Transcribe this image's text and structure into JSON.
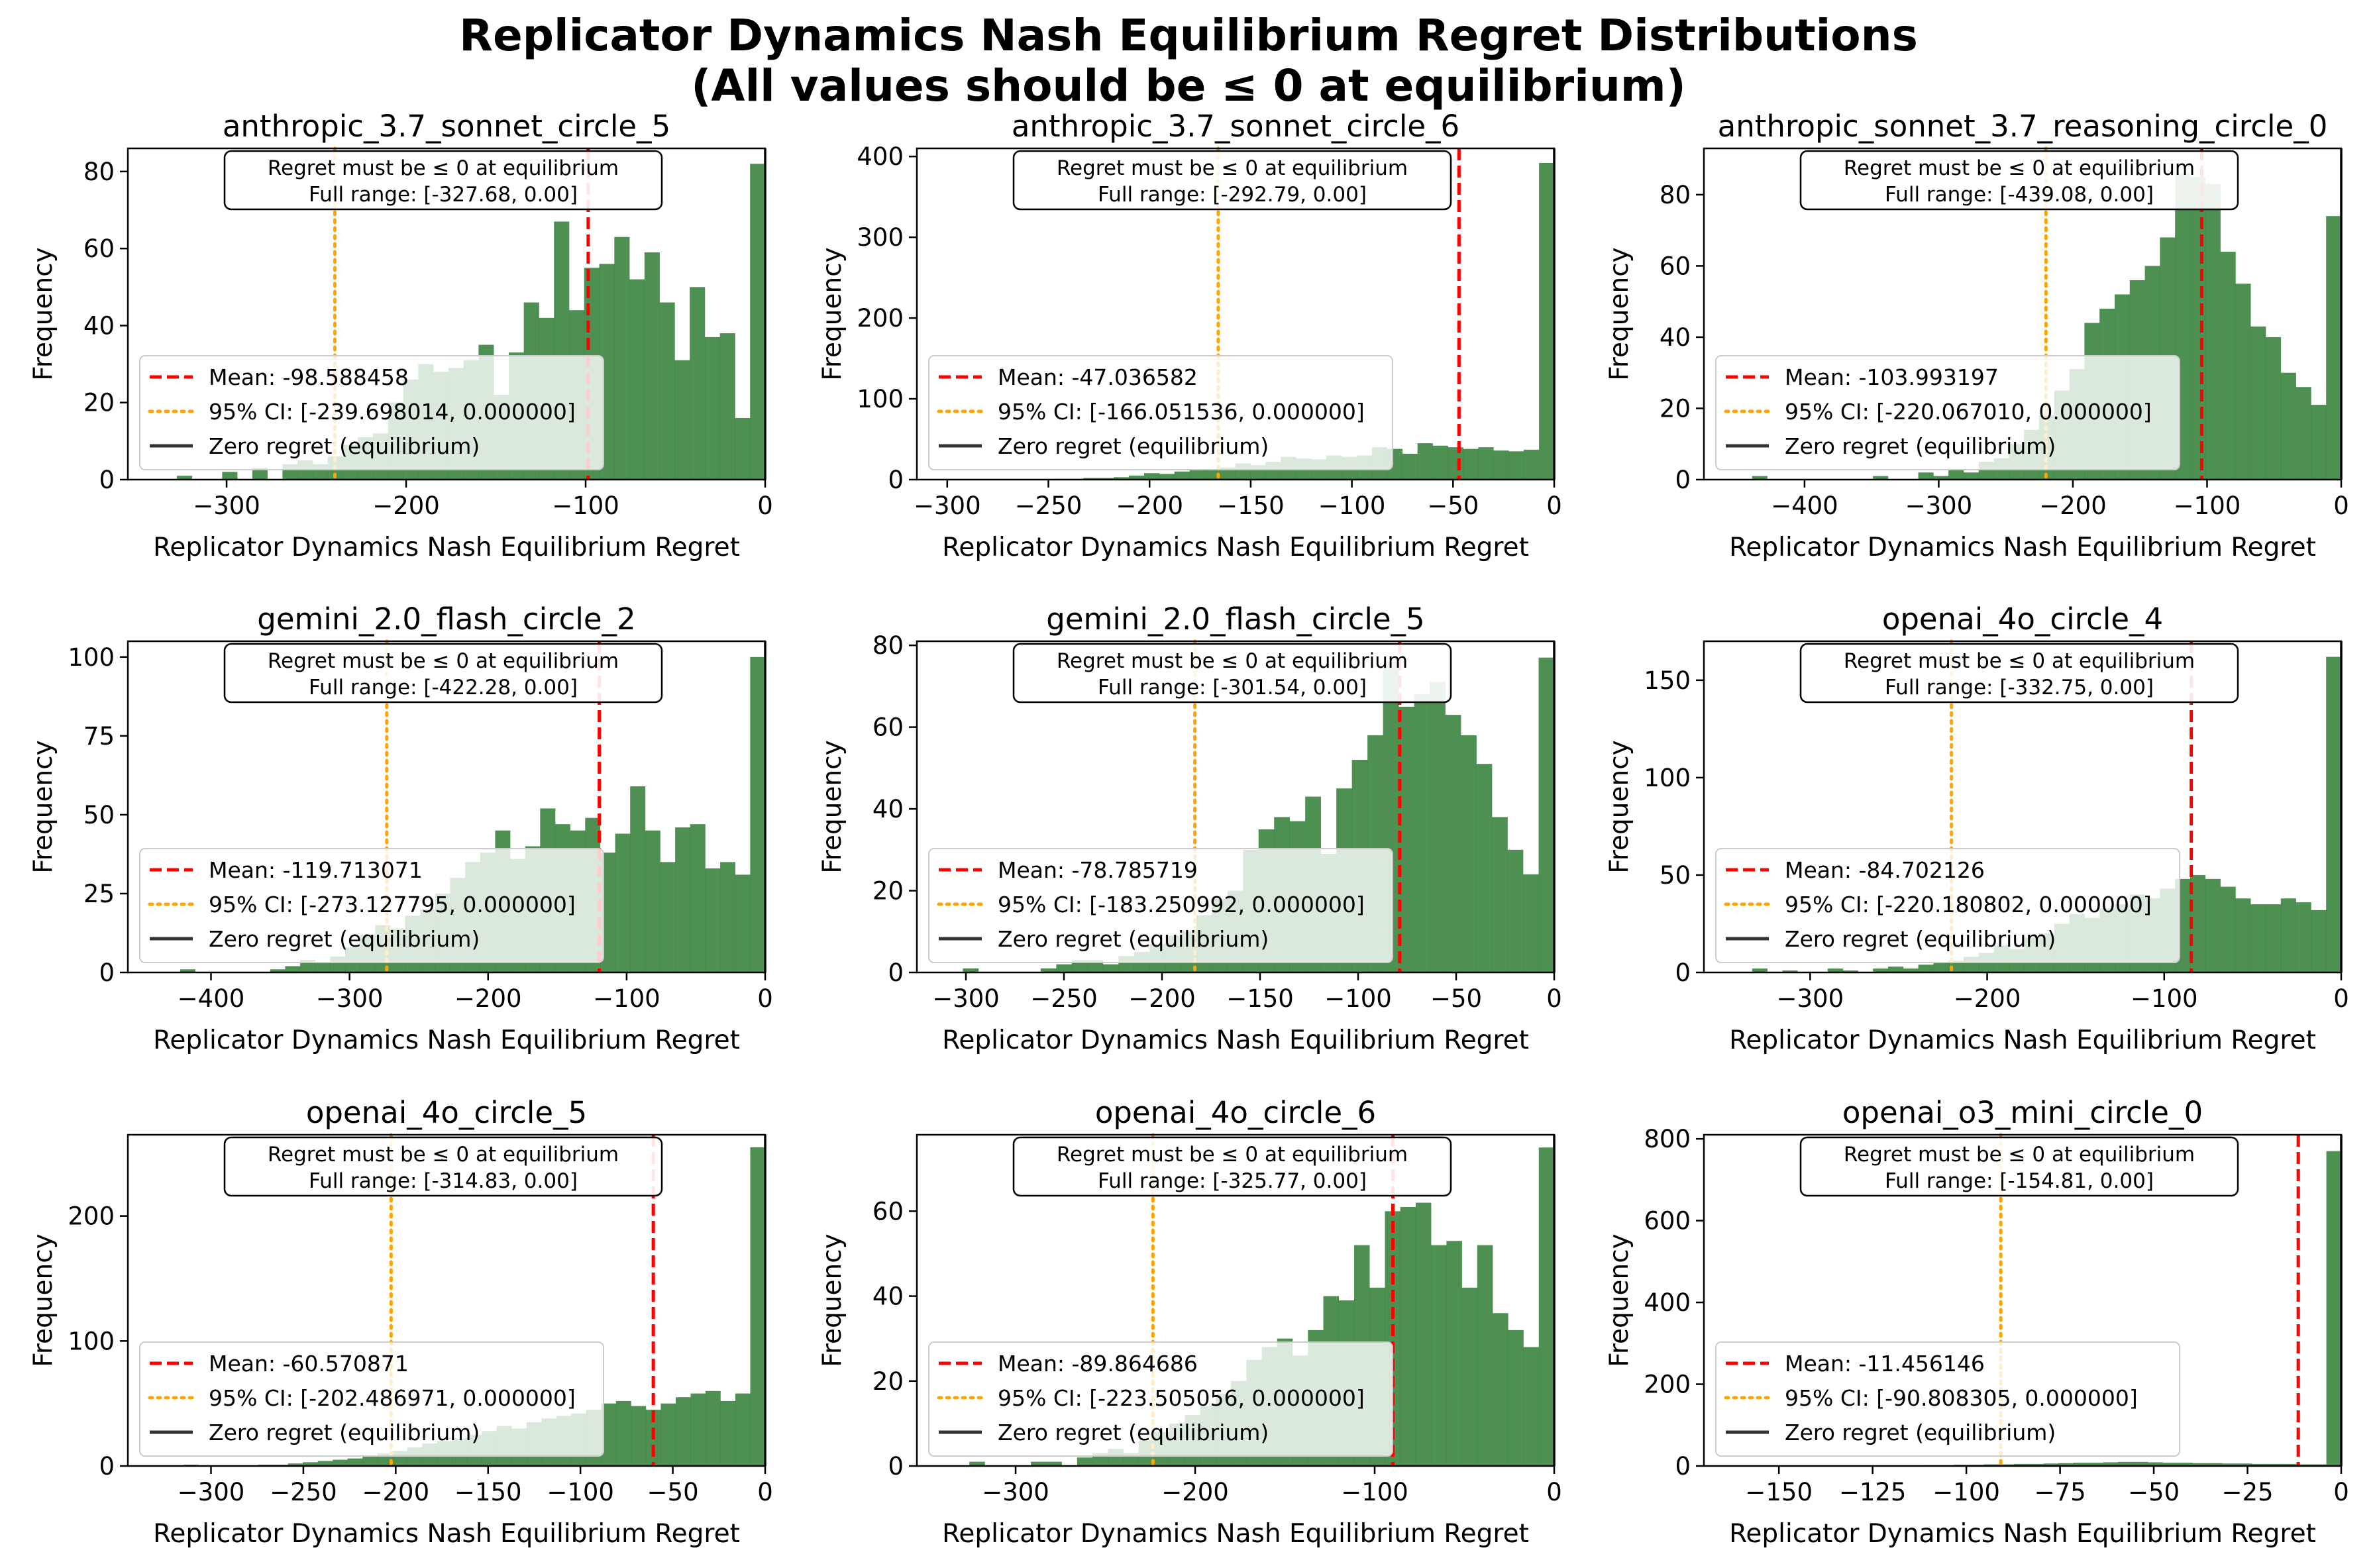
{
  "figure": {
    "title_line1": "Replicator Dynamics Nash Equilibrium Regret Distributions",
    "title_line2": "(All values should be ≤ 0 at equilibrium)"
  },
  "colors": {
    "bars": "#2e7d32",
    "mean_line": "#ff0000",
    "ci_line": "#ffa500",
    "zero_line": "#333333"
  },
  "chart_data": [
    {
      "type": "bar",
      "title": "anthropic_3.7_sonnet_circle_5",
      "xlabel": "Replicator Dynamics Nash Equilibrium Regret",
      "ylabel": "Frequency",
      "xlim": [
        -355,
        0
      ],
      "ylim": [
        0,
        86
      ],
      "xticks": [
        -300,
        -200,
        -100,
        0
      ],
      "yticks": [
        0,
        20,
        40,
        60,
        80
      ],
      "bin_range": [
        -327.68,
        0
      ],
      "values": [
        1,
        0,
        0,
        2,
        0,
        3,
        0,
        4,
        5,
        4,
        6,
        9,
        11,
        12,
        20,
        26,
        30,
        28,
        29,
        31,
        35,
        22,
        33,
        46,
        42,
        67,
        44,
        55,
        56,
        63,
        52,
        59,
        46,
        31,
        50,
        37,
        38,
        16,
        82
      ],
      "mean": -98.588458,
      "ci": [
        -239.698014,
        0.0
      ],
      "annotation_line1": "Regret must be ≤ 0 at equilibrium",
      "annotation_line2": "Full range: [-327.68, 0.00]",
      "legend": [
        "Mean: -98.588458",
        "95% CI: [-239.698014, 0.000000]",
        "Zero regret (equilibrium)"
      ]
    },
    {
      "type": "bar",
      "title": "anthropic_3.7_sonnet_circle_6",
      "xlabel": "Replicator Dynamics Nash Equilibrium Regret",
      "ylabel": "Frequency",
      "xlim": [
        -315,
        0
      ],
      "ylim": [
        0,
        410
      ],
      "xticks": [
        -300,
        -250,
        -200,
        -150,
        -100,
        -50,
        0
      ],
      "yticks": [
        0,
        100,
        200,
        300,
        400
      ],
      "bin_range": [
        -292.79,
        0
      ],
      "values": [
        0,
        0,
        0,
        0,
        0,
        0,
        1,
        1,
        2,
        2,
        3,
        5,
        8,
        7,
        10,
        12,
        13,
        15,
        20,
        18,
        22,
        28,
        26,
        25,
        30,
        28,
        30,
        40,
        38,
        32,
        45,
        42,
        40,
        38,
        40,
        36,
        35,
        37,
        392
      ],
      "mean": -47.036582,
      "ci": [
        -166.051536,
        0.0
      ],
      "annotation_line1": "Regret must be ≤ 0 at equilibrium",
      "annotation_line2": "Full range: [-292.79, 0.00]",
      "legend": [
        "Mean: -47.036582",
        "95% CI: [-166.051536, 0.000000]",
        "Zero regret (equilibrium)"
      ]
    },
    {
      "type": "bar",
      "title": "anthropic_sonnet_3.7_reasoning_circle_0",
      "xlabel": "Replicator Dynamics Nash Equilibrium Regret",
      "ylabel": "Frequency",
      "xlim": [
        -475,
        0
      ],
      "ylim": [
        0,
        93
      ],
      "xticks": [
        -400,
        -300,
        -200,
        -100,
        0
      ],
      "yticks": [
        0,
        20,
        40,
        60,
        80
      ],
      "bin_range": [
        -439.08,
        0
      ],
      "values": [
        1,
        0,
        0,
        0,
        0,
        0,
        0,
        0,
        1,
        0,
        0,
        2,
        1,
        3,
        2,
        5,
        6,
        10,
        14,
        18,
        25,
        31,
        44,
        48,
        52,
        56,
        60,
        68,
        86,
        85,
        83,
        64,
        55,
        43,
        40,
        30,
        26,
        21,
        74
      ],
      "mean": -103.993197,
      "ci": [
        -220.06701,
        0.0
      ],
      "annotation_line1": "Regret must be ≤ 0 at equilibrium",
      "annotation_line2": "Full range: [-439.08, 0.00]",
      "legend": [
        "Mean: -103.993197",
        "95% CI: [-220.067010, 0.000000]",
        "Zero regret (equilibrium)"
      ]
    },
    {
      "type": "bar",
      "title": "gemini_2.0_flash_circle_2",
      "xlabel": "Replicator Dynamics Nash Equilibrium Regret",
      "ylabel": "Frequency",
      "xlim": [
        -460,
        0
      ],
      "ylim": [
        0,
        105
      ],
      "xticks": [
        -400,
        -300,
        -200,
        -100,
        0
      ],
      "yticks": [
        0,
        25,
        50,
        75,
        100
      ],
      "bin_range": [
        -422.28,
        0
      ],
      "values": [
        1,
        0,
        0,
        0,
        0,
        0,
        1,
        2,
        4,
        3,
        5,
        8,
        12,
        15,
        14,
        18,
        20,
        25,
        30,
        35,
        38,
        45,
        36,
        40,
        52,
        47,
        45,
        49,
        38,
        44,
        59,
        45,
        35,
        46,
        47,
        33,
        35,
        31,
        100
      ],
      "mean": -119.713071,
      "ci": [
        -273.127795,
        0.0
      ],
      "annotation_line1": "Regret must be ≤ 0 at equilibrium",
      "annotation_line2": "Full range: [-422.28, 0.00]",
      "legend": [
        "Mean: -119.713071",
        "95% CI: [-273.127795, 0.000000]",
        "Zero regret (equilibrium)"
      ]
    },
    {
      "type": "bar",
      "title": "gemini_2.0_flash_circle_5",
      "xlabel": "Replicator Dynamics Nash Equilibrium Regret",
      "ylabel": "Frequency",
      "xlim": [
        -325,
        0
      ],
      "ylim": [
        0,
        81
      ],
      "xticks": [
        -300,
        -250,
        -200,
        -150,
        -100,
        -50,
        0
      ],
      "yticks": [
        0,
        20,
        40,
        60,
        80
      ],
      "bin_range": [
        -301.54,
        0
      ],
      "values": [
        1,
        0,
        0,
        0,
        0,
        1,
        2,
        3,
        3,
        2,
        4,
        5,
        7,
        9,
        10,
        14,
        18,
        20,
        30,
        35,
        38,
        37,
        43,
        29,
        45,
        52,
        58,
        76,
        65,
        68,
        71,
        63,
        58,
        51,
        38,
        30,
        24,
        77
      ],
      "mean": -78.785719,
      "ci": [
        -183.250992,
        0.0
      ],
      "annotation_line1": "Regret must be ≤ 0 at equilibrium",
      "annotation_line2": "Full range: [-301.54, 0.00]",
      "legend": [
        "Mean: -78.785719",
        "95% CI: [-183.250992, 0.000000]",
        "Zero regret (equilibrium)"
      ]
    },
    {
      "type": "bar",
      "title": "openai_4o_circle_4",
      "xlabel": "Replicator Dynamics Nash Equilibrium Regret",
      "ylabel": "Frequency",
      "xlim": [
        -360,
        0
      ],
      "ylim": [
        0,
        170
      ],
      "xticks": [
        -300,
        -200,
        -100,
        0
      ],
      "yticks": [
        0,
        50,
        100,
        150
      ],
      "bin_range": [
        -332.75,
        0
      ],
      "values": [
        2,
        0,
        1,
        0,
        0,
        2,
        1,
        0,
        2,
        3,
        2,
        4,
        5,
        6,
        8,
        10,
        14,
        12,
        18,
        20,
        25,
        30,
        28,
        33,
        35,
        40,
        38,
        43,
        48,
        50,
        48,
        44,
        38,
        35,
        35,
        38,
        36,
        32,
        162
      ],
      "mean": -84.702126,
      "ci": [
        -220.180802,
        0.0
      ],
      "annotation_line1": "Regret must be ≤ 0 at equilibrium",
      "annotation_line2": "Full range: [-332.75, 0.00]",
      "legend": [
        "Mean: -84.702126",
        "95% CI: [-220.180802, 0.000000]",
        "Zero regret (equilibrium)"
      ]
    },
    {
      "type": "bar",
      "title": "openai_4o_circle_5",
      "xlabel": "Replicator Dynamics Nash Equilibrium Regret",
      "ylabel": "Frequency",
      "xlim": [
        -345,
        0
      ],
      "ylim": [
        0,
        265
      ],
      "xticks": [
        -300,
        -250,
        -200,
        -150,
        -100,
        -50,
        0
      ],
      "yticks": [
        0,
        100,
        200
      ],
      "bin_range": [
        -314.83,
        0
      ],
      "values": [
        1,
        0,
        0,
        0,
        0,
        1,
        1,
        2,
        3,
        4,
        5,
        6,
        8,
        10,
        12,
        15,
        18,
        20,
        22,
        25,
        28,
        32,
        30,
        35,
        38,
        40,
        42,
        45,
        50,
        52,
        48,
        45,
        50,
        55,
        58,
        60,
        52,
        58,
        255
      ],
      "mean": -60.570871,
      "ci": [
        -202.486971,
        0.0
      ],
      "annotation_line1": "Regret must be ≤ 0 at equilibrium",
      "annotation_line2": "Full range: [-314.83, 0.00]",
      "legend": [
        "Mean: -60.570871",
        "95% CI: [-202.486971, 0.000000]",
        "Zero regret (equilibrium)"
      ]
    },
    {
      "type": "bar",
      "title": "openai_4o_circle_6",
      "xlabel": "Replicator Dynamics Nash Equilibrium Regret",
      "ylabel": "Frequency",
      "xlim": [
        -355,
        0
      ],
      "ylim": [
        0,
        78
      ],
      "xticks": [
        -300,
        -200,
        -100,
        0
      ],
      "yticks": [
        0,
        20,
        40,
        60
      ],
      "bin_range": [
        -325.77,
        0
      ],
      "values": [
        1,
        0,
        0,
        0,
        1,
        1,
        0,
        2,
        3,
        4,
        3,
        6,
        8,
        10,
        12,
        14,
        17,
        20,
        25,
        28,
        30,
        26,
        32,
        40,
        39,
        52,
        42,
        60,
        61,
        62,
        52,
        53,
        42,
        52,
        36,
        32,
        28,
        75
      ],
      "mean": -89.864686,
      "ci": [
        -223.505056,
        0.0
      ],
      "annotation_line1": "Regret must be ≤ 0 at equilibrium",
      "annotation_line2": "Full range: [-325.77, 0.00]",
      "legend": [
        "Mean: -89.864686",
        "95% CI: [-223.505056, 0.000000]",
        "Zero regret (equilibrium)"
      ]
    },
    {
      "type": "bar",
      "title": "openai_o3_mini_circle_0",
      "xlabel": "Replicator Dynamics Nash Equilibrium Regret",
      "ylabel": "Frequency",
      "xlim": [
        -170,
        0
      ],
      "ylim": [
        0,
        810
      ],
      "xticks": [
        -150,
        -125,
        -100,
        -75,
        -50,
        -25,
        0
      ],
      "yticks": [
        0,
        200,
        400,
        600,
        800
      ],
      "bin_range": [
        -154.81,
        0
      ],
      "values": [
        1,
        0,
        0,
        0,
        0,
        0,
        0,
        1,
        0,
        1,
        1,
        2,
        2,
        3,
        3,
        4,
        4,
        5,
        5,
        6,
        7,
        8,
        8,
        9,
        10,
        10,
        9,
        8,
        8,
        7,
        7,
        6,
        6,
        5,
        5,
        5,
        4,
        4,
        770
      ],
      "mean": -11.456146,
      "ci": [
        -90.808305,
        0.0
      ],
      "annotation_line1": "Regret must be ≤ 0 at equilibrium",
      "annotation_line2": "Full range: [-154.81, 0.00]",
      "legend": [
        "Mean: -11.456146",
        "95% CI: [-90.808305, 0.000000]",
        "Zero regret (equilibrium)"
      ]
    }
  ]
}
